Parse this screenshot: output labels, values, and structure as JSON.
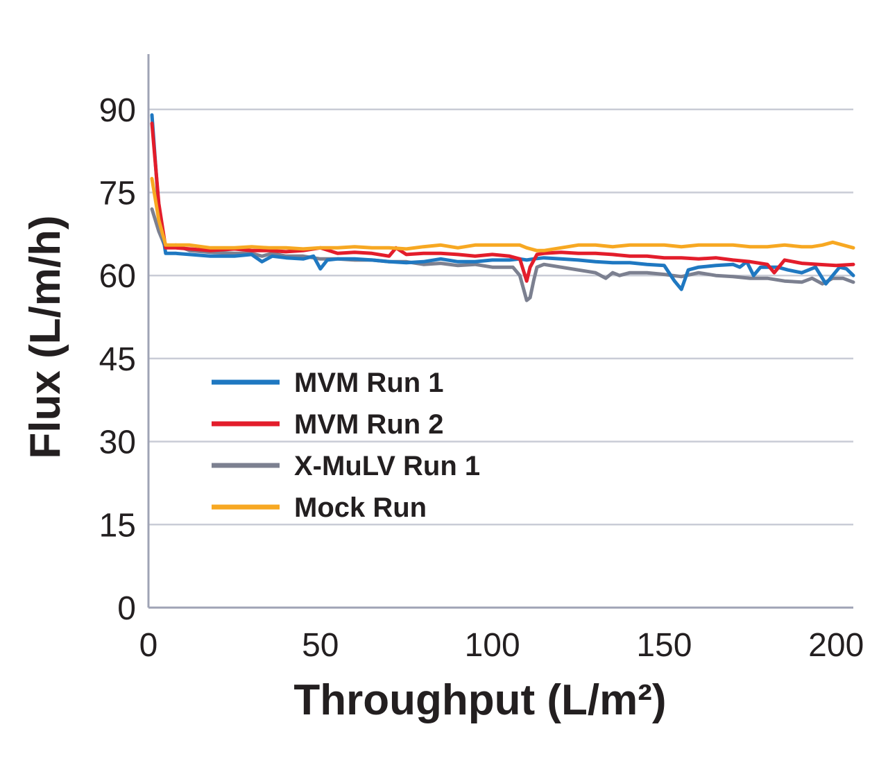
{
  "chart_data": {
    "type": "line",
    "title": "",
    "xlabel": "Throughput (L/m²)",
    "ylabel": "Flux (L/m/h)",
    "xlim": [
      0,
      205
    ],
    "ylim": [
      0,
      100
    ],
    "xticks": [
      0,
      50,
      100,
      150,
      200
    ],
    "yticks": [
      0,
      15,
      30,
      45,
      60,
      75,
      90
    ],
    "xtick_labels": [
      "0",
      "50",
      "100",
      "150",
      "200"
    ],
    "ytick_labels": [
      "0",
      "15",
      "30",
      "45",
      "60",
      "75",
      "90"
    ],
    "grid": true,
    "legend_position": "center-left",
    "series": [
      {
        "name": "MVM Run 1",
        "color": "#1f78c1",
        "x": [
          1,
          3,
          5,
          8,
          12,
          18,
          25,
          30,
          33,
          36,
          40,
          45,
          48,
          50,
          52,
          55,
          60,
          65,
          70,
          75,
          80,
          85,
          90,
          95,
          100,
          105,
          108,
          110,
          112,
          115,
          120,
          125,
          130,
          135,
          140,
          145,
          150,
          153,
          155,
          157,
          160,
          165,
          170,
          172,
          174,
          176,
          178,
          180,
          183,
          186,
          190,
          194,
          197,
          199,
          201,
          203,
          205
        ],
        "values": [
          89,
          72,
          64,
          64,
          63.8,
          63.5,
          63.5,
          63.8,
          62.5,
          63.5,
          63.2,
          63,
          63.5,
          61.2,
          62.8,
          63,
          63,
          62.8,
          62.5,
          62.3,
          62.5,
          63,
          62.5,
          62.5,
          62.8,
          62.8,
          63,
          62.8,
          63,
          63.2,
          63,
          62.8,
          62.5,
          62.3,
          62.3,
          62,
          61.8,
          59,
          57.5,
          61,
          61.5,
          61.8,
          62,
          61.5,
          62.5,
          60,
          61.5,
          61.5,
          61.5,
          61,
          60.5,
          61.5,
          58.5,
          60,
          61.5,
          61.2,
          60
        ]
      },
      {
        "name": "MVM Run 2",
        "color": "#e31d2b",
        "x": [
          1,
          3,
          5,
          8,
          12,
          18,
          25,
          30,
          35,
          40,
          45,
          50,
          55,
          60,
          65,
          70,
          72,
          75,
          80,
          85,
          90,
          95,
          100,
          105,
          108,
          110,
          111,
          113,
          115,
          120,
          125,
          130,
          135,
          140,
          145,
          150,
          155,
          160,
          165,
          170,
          175,
          180,
          182,
          185,
          190,
          195,
          200,
          205
        ],
        "values": [
          87.5,
          73,
          65,
          65,
          64.8,
          64.5,
          64.8,
          64.5,
          64.5,
          64.3,
          64.5,
          65,
          64,
          64.2,
          64,
          63.5,
          65,
          63.8,
          64,
          64,
          63.8,
          63.5,
          63.8,
          63.5,
          63,
          59,
          61.5,
          63.8,
          64,
          64.2,
          64,
          64,
          63.8,
          63.5,
          63.5,
          63.2,
          63.2,
          63,
          63.2,
          62.8,
          62.5,
          62,
          60.5,
          62.8,
          62.2,
          62,
          61.8,
          62
        ]
      },
      {
        "name": "X-MuLV Run 1",
        "color": "#7c8090",
        "x": [
          1,
          3,
          5,
          8,
          12,
          18,
          25,
          30,
          33,
          36,
          40,
          45,
          50,
          55,
          60,
          65,
          70,
          75,
          80,
          85,
          90,
          95,
          100,
          103,
          106,
          108,
          110,
          111,
          112,
          113,
          115,
          120,
          125,
          130,
          133,
          135,
          137,
          140,
          145,
          150,
          155,
          160,
          165,
          170,
          175,
          180,
          185,
          190,
          193,
          196,
          199,
          202,
          205
        ],
        "values": [
          72,
          68,
          65,
          65.5,
          64.5,
          64.2,
          64,
          64,
          63.5,
          64,
          63.5,
          63.5,
          63,
          63,
          62.8,
          62.8,
          62.5,
          62.5,
          62,
          62.2,
          61.8,
          62,
          61.5,
          61.5,
          61.5,
          60,
          55.5,
          56,
          59,
          61.5,
          62,
          61.5,
          61,
          60.5,
          59.5,
          60.5,
          60,
          60.5,
          60.5,
          60.2,
          59.8,
          60.5,
          60,
          59.8,
          59.5,
          59.5,
          59,
          58.8,
          59.5,
          58.5,
          59.5,
          59.5,
          58.8
        ]
      },
      {
        "name": "Mock Run",
        "color": "#f7a822",
        "x": [
          1,
          3,
          5,
          8,
          12,
          18,
          25,
          30,
          35,
          40,
          45,
          50,
          55,
          60,
          65,
          70,
          75,
          80,
          85,
          90,
          95,
          100,
          105,
          108,
          110,
          113,
          115,
          120,
          125,
          130,
          135,
          140,
          145,
          150,
          155,
          160,
          165,
          170,
          175,
          180,
          185,
          190,
          193,
          196,
          199,
          202,
          205
        ],
        "values": [
          77.5,
          70,
          65.5,
          65.5,
          65.5,
          65,
          65,
          65.2,
          65,
          65,
          64.8,
          65,
          65,
          65.2,
          65,
          65,
          64.8,
          65.2,
          65.5,
          65,
          65.5,
          65.5,
          65.5,
          65.5,
          65,
          64.5,
          64.5,
          65,
          65.5,
          65.5,
          65.2,
          65.5,
          65.5,
          65.5,
          65.2,
          65.5,
          65.5,
          65.5,
          65.2,
          65.2,
          65.5,
          65.2,
          65.2,
          65.5,
          66,
          65.5,
          65
        ]
      }
    ]
  }
}
